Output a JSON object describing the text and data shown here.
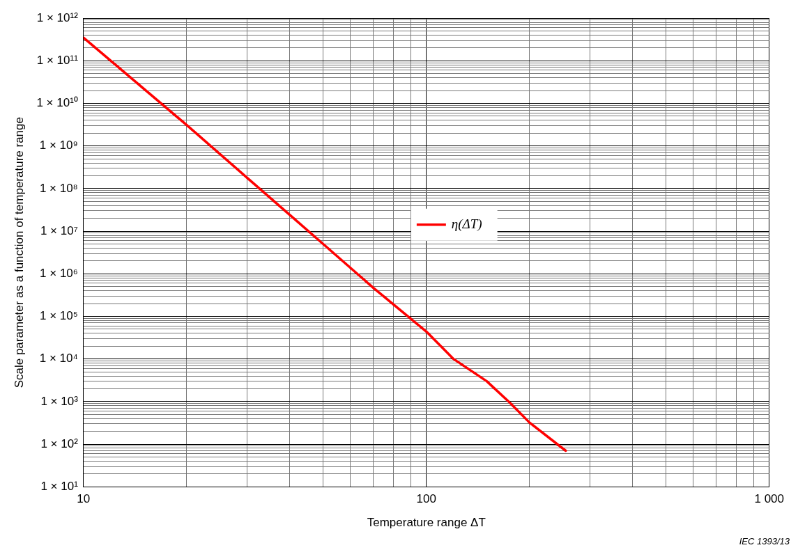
{
  "chart_data": {
    "type": "line",
    "log": "xy",
    "grid": true,
    "legend": "center",
    "marker": "none",
    "line_style": "solid",
    "xlabel": "Temperature range ΔT",
    "ylabel": "Scale parameter as a function of temperature range",
    "annotations": [
      "IEC 1393/13"
    ],
    "xlim": [
      10,
      1000
    ],
    "ylim": [
      10,
      1000000000000.0
    ],
    "xticks": [
      10,
      {
        "value": 20,
        "label": null
      },
      {
        "value": 30,
        "label": null
      },
      {
        "value": 40,
        "label": null
      },
      {
        "value": 50,
        "label": null
      },
      {
        "value": 60,
        "label": null
      },
      {
        "value": 70,
        "label": null
      },
      {
        "value": 80,
        "label": null
      },
      {
        "value": 90,
        "label": null
      },
      100,
      {
        "value": 200,
        "label": null
      },
      {
        "value": 300,
        "label": null
      },
      {
        "value": 400,
        "label": null
      },
      {
        "value": 500,
        "label": null
      },
      {
        "value": 600,
        "label": null
      },
      {
        "value": 700,
        "label": null
      },
      {
        "value": 800,
        "label": null
      },
      {
        "value": 900,
        "label": null
      },
      {
        "value": 1000,
        "label": "1 000"
      }
    ],
    "yticks": [
      {
        "value": 10,
        "label": "1 × 10¹"
      },
      {
        "value": 20,
        "label": null
      },
      {
        "value": 30,
        "label": null
      },
      {
        "value": 40,
        "label": null
      },
      {
        "value": 50,
        "label": null
      },
      {
        "value": 60,
        "label": null
      },
      {
        "value": 70,
        "label": null
      },
      {
        "value": 80,
        "label": null
      },
      {
        "value": 90,
        "label": null
      },
      {
        "value": 100,
        "label": "1 × 10²"
      },
      {
        "value": 200,
        "label": null
      },
      {
        "value": 300,
        "label": null
      },
      {
        "value": 400,
        "label": null
      },
      {
        "value": 500,
        "label": null
      },
      {
        "value": 600,
        "label": null
      },
      {
        "value": 700,
        "label": null
      },
      {
        "value": 800,
        "label": null
      },
      {
        "value": 900,
        "label": null
      },
      {
        "value": 1000.0,
        "label": "1 × 10³"
      },
      {
        "value": 2000.0,
        "label": null
      },
      {
        "value": 3000.0,
        "label": null
      },
      {
        "value": 4000.0,
        "label": null
      },
      {
        "value": 5000.0,
        "label": null
      },
      {
        "value": 6000.0,
        "label": null
      },
      {
        "value": 7000.0,
        "label": null
      },
      {
        "value": 8000.0,
        "label": null
      },
      {
        "value": 9000.0,
        "label": null
      },
      {
        "value": 10000.0,
        "label": "1 × 10⁴"
      },
      {
        "value": 20000.0,
        "label": null
      },
      {
        "value": 30000.0,
        "label": null
      },
      {
        "value": 40000.0,
        "label": null
      },
      {
        "value": 50000.0,
        "label": null
      },
      {
        "value": 60000.0,
        "label": null
      },
      {
        "value": 70000.0,
        "label": null
      },
      {
        "value": 80000.0,
        "label": null
      },
      {
        "value": 90000.0,
        "label": null
      },
      {
        "value": 100000.0,
        "label": "1 × 10⁵"
      },
      {
        "value": 200000.0,
        "label": null
      },
      {
        "value": 300000.0,
        "label": null
      },
      {
        "value": 400000.0,
        "label": null
      },
      {
        "value": 500000.0,
        "label": null
      },
      {
        "value": 600000.0,
        "label": null
      },
      {
        "value": 700000.0,
        "label": null
      },
      {
        "value": 800000.0,
        "label": null
      },
      {
        "value": 900000.0,
        "label": null
      },
      {
        "value": 1000000.0,
        "label": "1 × 10⁶"
      },
      {
        "value": 2000000.0,
        "label": null
      },
      {
        "value": 3000000.0,
        "label": null
      },
      {
        "value": 4000000.0,
        "label": null
      },
      {
        "value": 5000000.0,
        "label": null
      },
      {
        "value": 6000000.0,
        "label": null
      },
      {
        "value": 7000000.0,
        "label": null
      },
      {
        "value": 8000000.0,
        "label": null
      },
      {
        "value": 9000000.0,
        "label": null
      },
      {
        "value": 10000000.0,
        "label": "1 × 10⁷"
      },
      {
        "value": 20000000.0,
        "label": null
      },
      {
        "value": 30000000.0,
        "label": null
      },
      {
        "value": 40000000.0,
        "label": null
      },
      {
        "value": 50000000.0,
        "label": null
      },
      {
        "value": 60000000.0,
        "label": null
      },
      {
        "value": 70000000.0,
        "label": null
      },
      {
        "value": 80000000.0,
        "label": null
      },
      {
        "value": 90000000.0,
        "label": null
      },
      {
        "value": 100000000.0,
        "label": "1 × 10⁸"
      },
      {
        "value": 200000000.0,
        "label": null
      },
      {
        "value": 300000000.0,
        "label": null
      },
      {
        "value": 400000000.0,
        "label": null
      },
      {
        "value": 500000000.0,
        "label": null
      },
      {
        "value": 600000000.0,
        "label": null
      },
      {
        "value": 700000000.0,
        "label": null
      },
      {
        "value": 800000000.0,
        "label": null
      },
      {
        "value": 900000000.0,
        "label": null
      },
      {
        "value": 1000000000.0,
        "label": "1 × 10⁹"
      },
      {
        "value": 2000000000.0,
        "label": null
      },
      {
        "value": 3000000000.0,
        "label": null
      },
      {
        "value": 4000000000.0,
        "label": null
      },
      {
        "value": 5000000000.0,
        "label": null
      },
      {
        "value": 6000000000.0,
        "label": null
      },
      {
        "value": 7000000000.0,
        "label": null
      },
      {
        "value": 8000000000.0,
        "label": null
      },
      {
        "value": 9000000000.0,
        "label": null
      },
      {
        "value": 10000000000.0,
        "label": "1 × 10¹⁰"
      },
      {
        "value": 20000000000.0,
        "label": null
      },
      {
        "value": 30000000000.0,
        "label": null
      },
      {
        "value": 40000000000.0,
        "label": null
      },
      {
        "value": 50000000000.0,
        "label": null
      },
      {
        "value": 60000000000.0,
        "label": null
      },
      {
        "value": 70000000000.0,
        "label": null
      },
      {
        "value": 80000000000.0,
        "label": null
      },
      {
        "value": 90000000000.0,
        "label": null
      },
      {
        "value": 100000000000.0,
        "label": "1 × 10¹¹"
      },
      {
        "value": 200000000000.0,
        "label": null
      },
      {
        "value": 300000000000.0,
        "label": null
      },
      {
        "value": 400000000000.0,
        "label": null
      },
      {
        "value": 500000000000.0,
        "label": null
      },
      {
        "value": 600000000000.0,
        "label": null
      },
      {
        "value": 700000000000.0,
        "label": null
      },
      {
        "value": 800000000000.0,
        "label": null
      },
      {
        "value": 900000000000.0,
        "label": null
      },
      {
        "value": 1000000000000.0,
        "label": "1 × 10¹²"
      }
    ],
    "series": [
      {
        "name": "η(ΔT)",
        "color": "#ff0000",
        "x": [
          10,
          20,
          30,
          40,
          50,
          70,
          100,
          120,
          150,
          175,
          200,
          255
        ],
        "values": [
          350000000000.0,
          3100000000.0,
          180000000.0,
          24000000.0,
          5000000.0,
          470000.0,
          44000.0,
          10000.0,
          3000,
          950,
          320,
          70
        ]
      }
    ]
  }
}
